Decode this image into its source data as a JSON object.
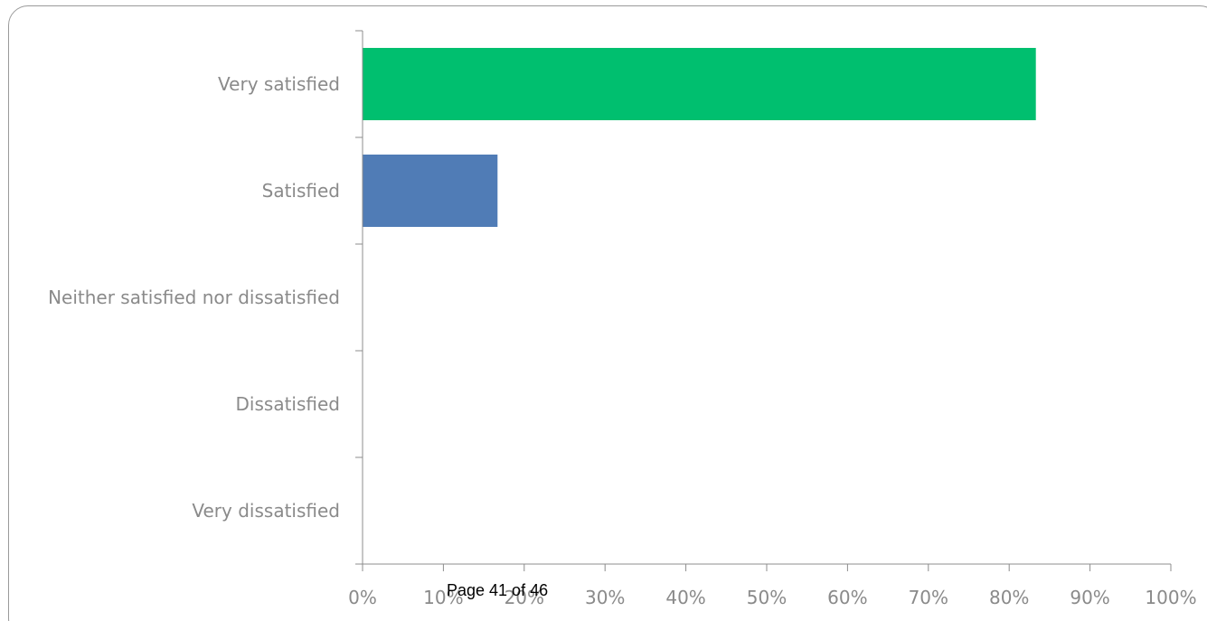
{
  "chart_data": {
    "type": "bar",
    "orientation": "horizontal",
    "categories": [
      "Very satisfied",
      "Satisfied",
      "Neither satisfied nor dissatisfied",
      "Dissatisfied",
      "Very dissatisfied"
    ],
    "values": [
      83.3,
      16.7,
      0,
      0,
      0
    ],
    "bar_colors": [
      "#00BF6F",
      "#507CB6",
      "#507CB6",
      "#507CB6",
      "#507CB6"
    ],
    "xlim": [
      0,
      100
    ],
    "x_ticks": [
      "0%",
      "10%",
      "20%",
      "30%",
      "40%",
      "50%",
      "60%",
      "70%",
      "80%",
      "90%",
      "100%"
    ],
    "grid": false,
    "legend": "none",
    "title": "",
    "xlabel": "",
    "ylabel": ""
  },
  "footer": {
    "page_label": "Page 41 of 46"
  }
}
